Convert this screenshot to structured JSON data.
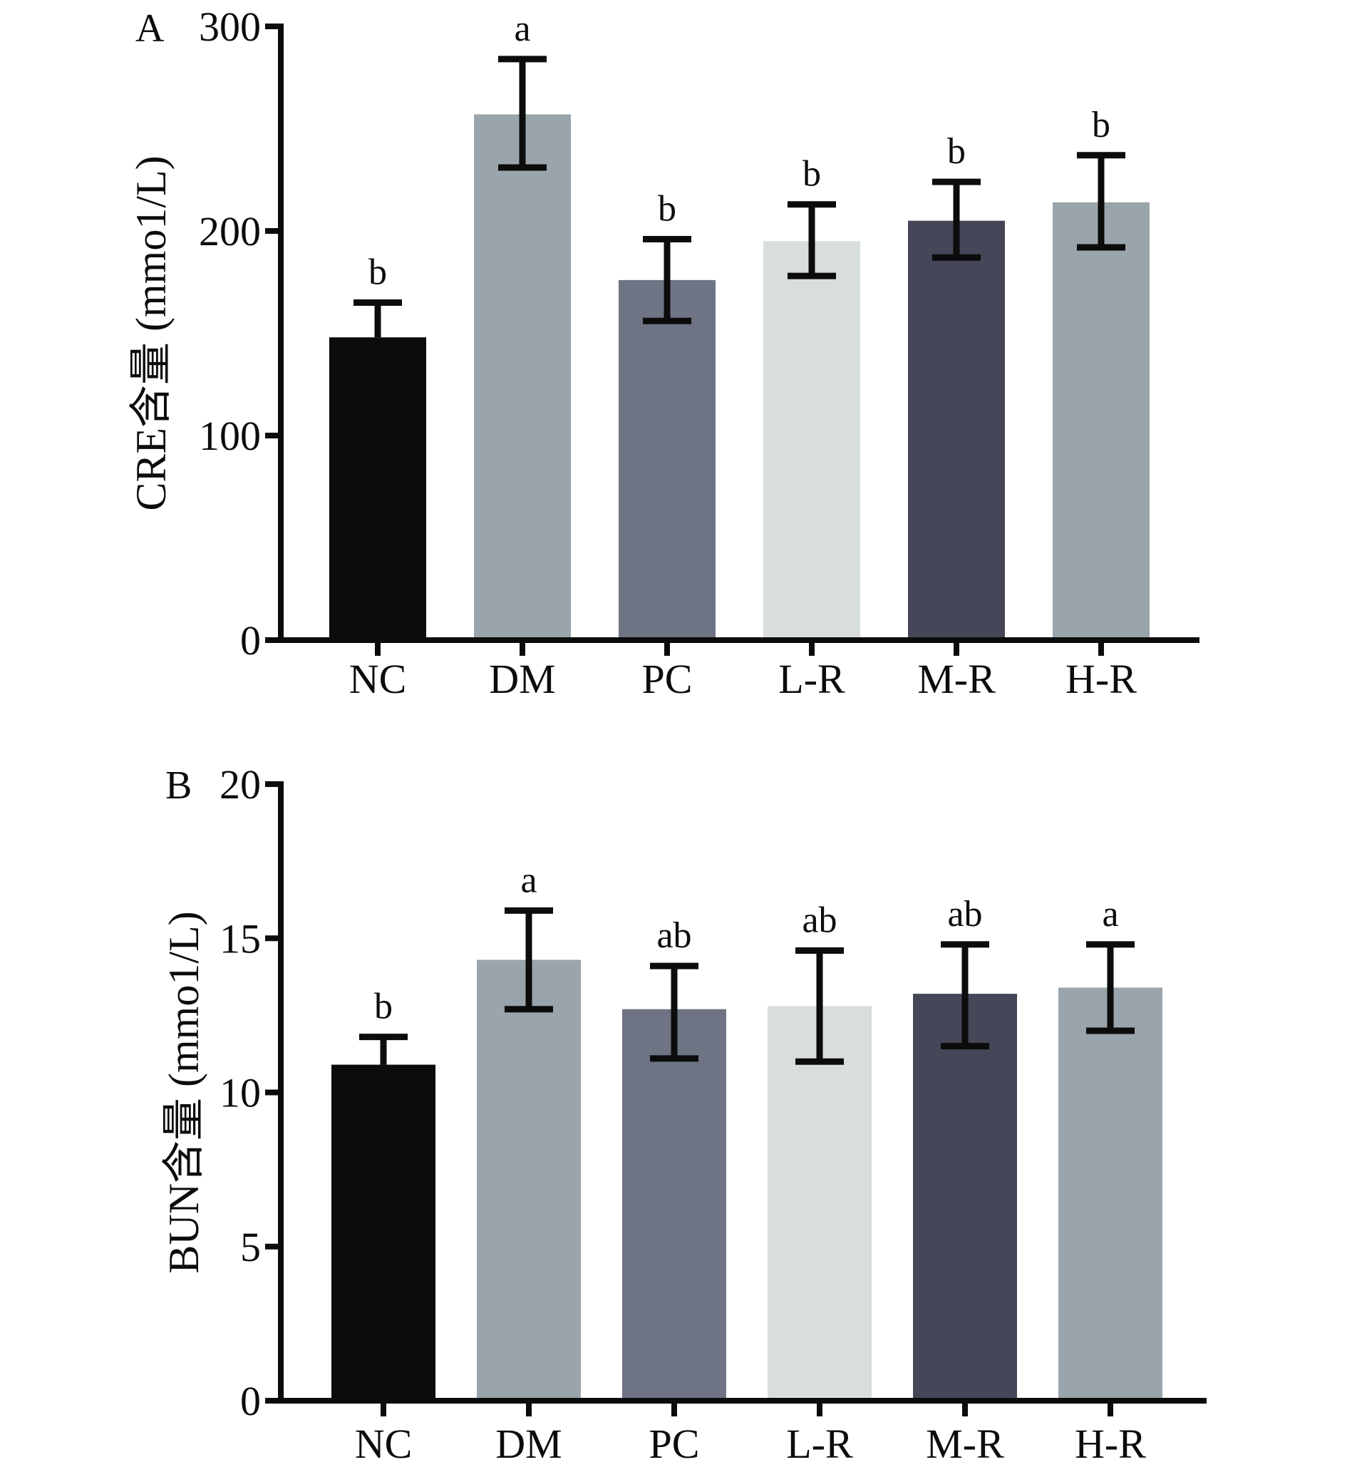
{
  "chart_data": [
    {
      "type": "bar",
      "panel": "A",
      "ylabel": "CRE含量 (mmo1/L)",
      "ylim": [
        0,
        300
      ],
      "yticks": [
        0,
        100,
        200,
        300
      ],
      "ytick_labels": [
        "0",
        "100",
        "200",
        "300"
      ],
      "categories": [
        "NC",
        "DM",
        "PC",
        "L-R",
        "M-R",
        "H-R"
      ],
      "values": [
        148,
        257,
        176,
        195,
        205,
        214
      ],
      "error_upper": [
        165,
        284,
        196,
        213,
        224,
        237
      ],
      "error_lower": [
        131,
        231,
        156,
        178,
        187,
        192
      ],
      "significance": [
        "b",
        "a",
        "b",
        "b",
        "b",
        "b"
      ],
      "colors": [
        "#0b0c0b",
        "#99a4ab",
        "#6e7483",
        "#d8dedb",
        "#454657",
        "#99a4ab"
      ]
    },
    {
      "type": "bar",
      "panel": "B",
      "ylabel": "BUN含量 (mmo1/L)",
      "ylim": [
        0,
        20
      ],
      "yticks": [
        0,
        5,
        10,
        15,
        20
      ],
      "ytick_labels": [
        "0",
        "5",
        "10",
        "15",
        "20"
      ],
      "categories": [
        "NC",
        "DM",
        "PC",
        "L-R",
        "M-R",
        "H-R"
      ],
      "values": [
        10.9,
        14.3,
        12.7,
        12.8,
        13.2,
        13.4
      ],
      "error_upper": [
        11.8,
        15.9,
        14.1,
        14.6,
        14.8,
        14.8
      ],
      "error_lower": [
        10.0,
        12.7,
        11.1,
        11.0,
        11.5,
        12.0
      ],
      "significance": [
        "b",
        "a",
        "ab",
        "ab",
        "ab",
        "a"
      ],
      "colors": [
        "#0b0c0b",
        "#99a4ab",
        "#6e7483",
        "#d8dedb",
        "#454657",
        "#99a4ab"
      ]
    }
  ],
  "ink_color": "#0b0c0b"
}
